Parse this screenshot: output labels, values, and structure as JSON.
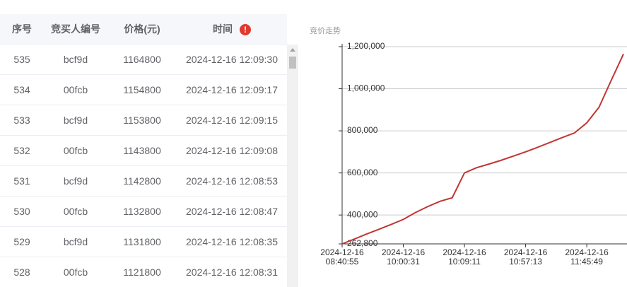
{
  "table": {
    "columns": [
      "序号",
      "竞买人编号",
      "价格(元)",
      "时间"
    ],
    "rows": [
      [
        "535",
        "bcf9d",
        "1164800",
        "2024-12-16 12:09:30"
      ],
      [
        "534",
        "00fcb",
        "1154800",
        "2024-12-16 12:09:17"
      ],
      [
        "533",
        "bcf9d",
        "1153800",
        "2024-12-16 12:09:15"
      ],
      [
        "532",
        "00fcb",
        "1143800",
        "2024-12-16 12:09:08"
      ],
      [
        "531",
        "bcf9d",
        "1142800",
        "2024-12-16 12:08:53"
      ],
      [
        "530",
        "00fcb",
        "1132800",
        "2024-12-16 12:08:47"
      ],
      [
        "529",
        "bcf9d",
        "1131800",
        "2024-12-16 12:08:35"
      ],
      [
        "528",
        "00fcb",
        "1121800",
        "2024-12-16 12:08:31"
      ]
    ]
  },
  "chart_data": {
    "type": "line",
    "title": "竞价走势",
    "color": "#c23531",
    "categories": [
      "2024-12-16\n08:40:55",
      null,
      null,
      null,
      null,
      "2024-12-16\n10:00:31",
      null,
      null,
      null,
      null,
      "2024-12-16\n10:09:11",
      null,
      null,
      null,
      null,
      "2024-12-16\n10:57:13",
      null,
      null,
      null,
      null,
      "2024-12-16\n11:45:49",
      null,
      null,
      null
    ],
    "values": [
      262800,
      285500,
      309500,
      332000,
      355000,
      379000,
      412000,
      440000,
      465000,
      482000,
      600000,
      625000,
      642000,
      660000,
      680000,
      700000,
      722000,
      745000,
      768000,
      790000,
      838000,
      912000,
      1040000,
      1164800
    ],
    "ylim": [
      262800,
      1200000
    ],
    "yticks": [
      {
        "value": 262800,
        "label": "262,800"
      },
      {
        "value": 400000,
        "label": "400,000"
      },
      {
        "value": 600000,
        "label": "600,000"
      },
      {
        "value": 800000,
        "label": "800,000"
      },
      {
        "value": 1000000,
        "label": "1,000,000"
      },
      {
        "value": 1200000,
        "label": "1,200,000"
      }
    ],
    "grid": true
  }
}
